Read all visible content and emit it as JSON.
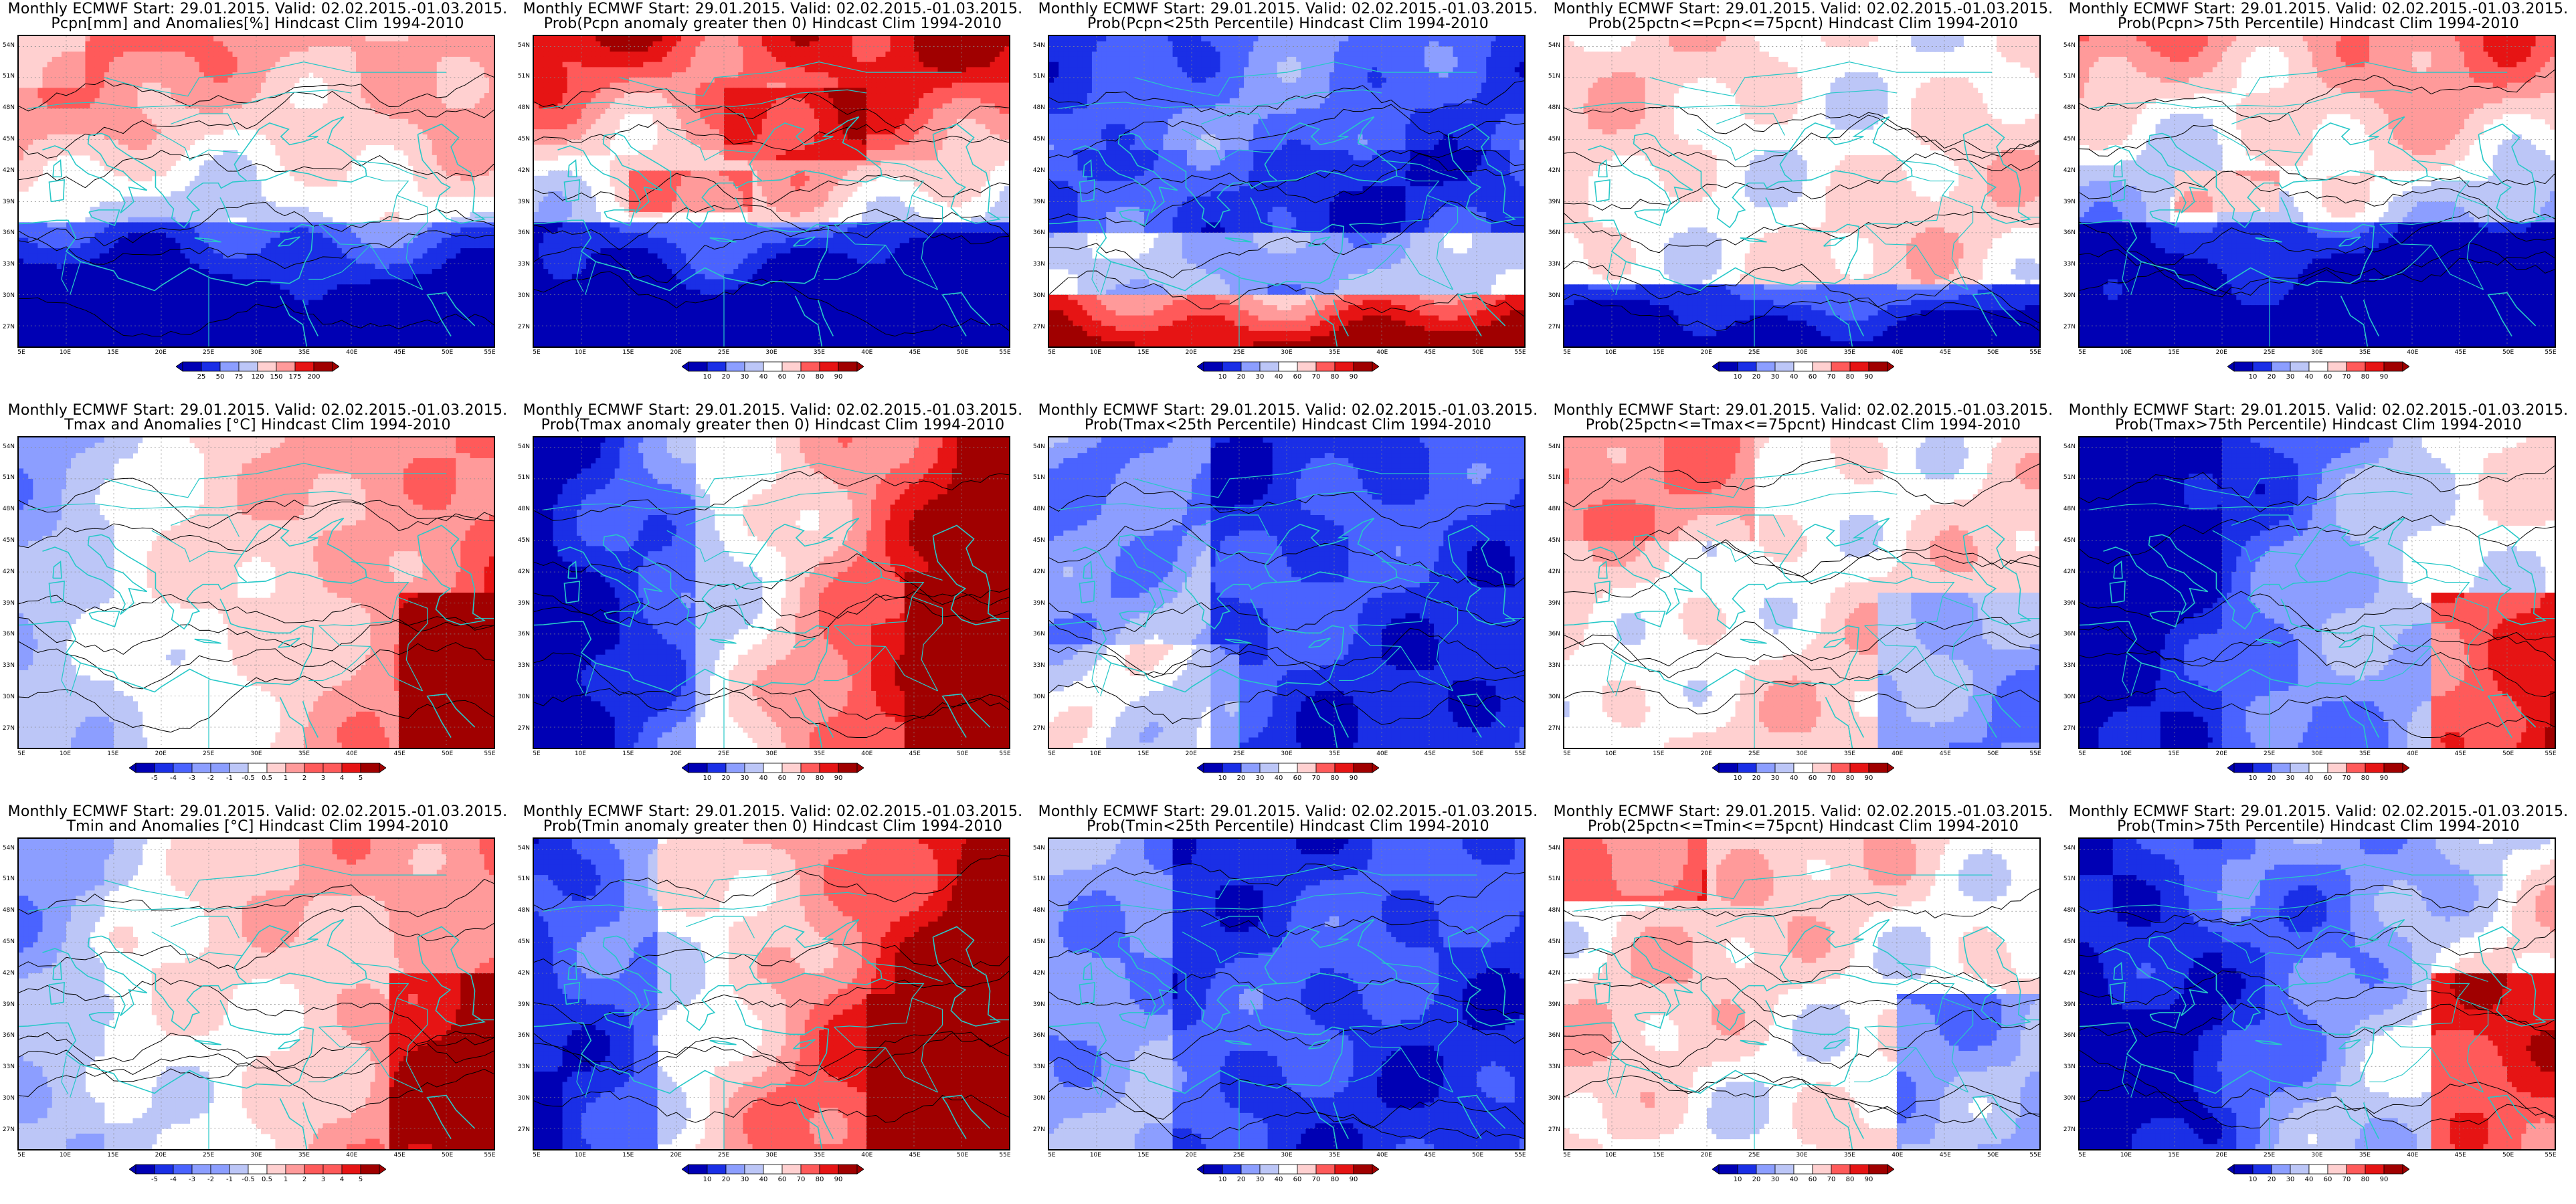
{
  "colors": {
    "coast": "#27c8c8",
    "contour": "#000000",
    "diverging": [
      "#0000b4",
      "#1a2fe6",
      "#4a63ff",
      "#8c9eff",
      "#bcc6f7",
      "#ffffff",
      "#ffd0d0",
      "#ff9a9a",
      "#ff5a5a",
      "#e61414",
      "#a00000"
    ]
  },
  "lat_ticks": [
    "54N",
    "51N",
    "48N",
    "45N",
    "42N",
    "39N",
    "36N",
    "33N",
    "30N",
    "27N"
  ],
  "lon_ticks": [
    "5E",
    "10E",
    "15E",
    "20E",
    "25E",
    "30E",
    "35E",
    "40E",
    "45E",
    "50E",
    "55E"
  ],
  "panels": [
    {
      "title1": "Monthly ECMWF Start: 29.01.2015. Valid: 02.02.2015.-01.03.2015.",
      "title2": "Pcpn[mm] and Anomalies[%] Hindcast Clim 1994-2010",
      "pattern": "wet_north_dry_south",
      "colorbar": [
        "25",
        "50",
        "75",
        "120",
        "150",
        "175",
        "200"
      ]
    },
    {
      "title1": "Monthly ECMWF Start: 29.01.2015. Valid: 02.02.2015.-01.03.2015.",
      "title2": "Prob(Pcpn anomaly greater then 0) Hindcast Clim 1994-2010",
      "pattern": "wet_prob",
      "colorbar": [
        "10",
        "20",
        "30",
        "40",
        "60",
        "70",
        "80",
        "90"
      ]
    },
    {
      "title1": "Monthly ECMWF Start: 29.01.2015. Valid: 02.02.2015.-01.03.2015.",
      "title2": "Prob(Pcpn<25th Percentile) Hindcast Clim 1994-2010",
      "pattern": "low_pcpn",
      "colorbar": [
        "10",
        "20",
        "30",
        "40",
        "60",
        "70",
        "80",
        "90"
      ]
    },
    {
      "title1": "Monthly ECMWF Start: 29.01.2015. Valid: 02.02.2015.-01.03.2015.",
      "title2": "Prob(25pctn<=Pcpn<=75pcnt) Hindcast Clim 1994-2010",
      "pattern": "mid_pcpn",
      "colorbar": [
        "10",
        "20",
        "30",
        "40",
        "60",
        "70",
        "80",
        "90"
      ]
    },
    {
      "title1": "Monthly ECMWF Start: 29.01.2015. Valid: 02.02.2015.-01.03.2015.",
      "title2": "Prob(Pcpn>75th Percentile) Hindcast Clim 1994-2010",
      "pattern": "high_pcpn",
      "colorbar": [
        "10",
        "20",
        "30",
        "40",
        "60",
        "70",
        "80",
        "90"
      ]
    },
    {
      "title1": "Monthly ECMWF Start: 29.01.2015. Valid: 02.02.2015.-01.03.2015.",
      "title2": "Tmax and Anomalies [°C] Hindcast Clim 1994-2010",
      "pattern": "warm_east",
      "colorbar": [
        "-5",
        "-4",
        "-3",
        "-2",
        "-1",
        "-0.5",
        "0.5",
        "1",
        "2",
        "3",
        "4",
        "5"
      ]
    },
    {
      "title1": "Monthly ECMWF Start: 29.01.2015. Valid: 02.02.2015.-01.03.2015.",
      "title2": "Prob(Tmax anomaly greater then 0) Hindcast Clim 1994-2010",
      "pattern": "warm_prob_east",
      "colorbar": [
        "10",
        "20",
        "30",
        "40",
        "60",
        "70",
        "80",
        "90"
      ]
    },
    {
      "title1": "Monthly ECMWF Start: 29.01.2015. Valid: 02.02.2015.-01.03.2015.",
      "title2": "Prob(Tmax<25th Percentile) Hindcast Clim 1994-2010",
      "pattern": "cold_low",
      "colorbar": [
        "10",
        "20",
        "30",
        "40",
        "60",
        "70",
        "80",
        "90"
      ]
    },
    {
      "title1": "Monthly ECMWF Start: 29.01.2015. Valid: 02.02.2015.-01.03.2015.",
      "title2": "Prob(25pctn<=Tmax<=75pcnt) Hindcast Clim 1994-2010",
      "pattern": "mid_temp",
      "colorbar": [
        "10",
        "20",
        "30",
        "40",
        "60",
        "70",
        "80",
        "90"
      ]
    },
    {
      "title1": "Monthly ECMWF Start: 29.01.2015. Valid: 02.02.2015.-01.03.2015.",
      "title2": "Prob(Tmax>75th Percentile) Hindcast Clim 1994-2010",
      "pattern": "high_temp",
      "colorbar": [
        "10",
        "20",
        "30",
        "40",
        "60",
        "70",
        "80",
        "90"
      ]
    },
    {
      "title1": "Monthly ECMWF Start: 29.01.2015. Valid: 02.02.2015.-01.03.2015.",
      "title2": "Tmin and Anomalies [°C] Hindcast Clim 1994-2010",
      "pattern": "warm_east_tmin",
      "colorbar": [
        "-5",
        "-4",
        "-3",
        "-2",
        "-1",
        "-0.5",
        "0.5",
        "1",
        "2",
        "3",
        "4",
        "5"
      ]
    },
    {
      "title1": "Monthly ECMWF Start: 29.01.2015. Valid: 02.02.2015.-01.03.2015.",
      "title2": "Prob(Tmin anomaly greater then 0) Hindcast Clim 1994-2010",
      "pattern": "warm_prob_tmin",
      "colorbar": [
        "10",
        "20",
        "30",
        "40",
        "60",
        "70",
        "80",
        "90"
      ]
    },
    {
      "title1": "Monthly ECMWF Start: 29.01.2015. Valid: 02.02.2015.-01.03.2015.",
      "title2": "Prob(Tmin<25th Percentile) Hindcast Clim 1994-2010",
      "pattern": "cold_low_tmin",
      "colorbar": [
        "10",
        "20",
        "30",
        "40",
        "60",
        "70",
        "80",
        "90"
      ]
    },
    {
      "title1": "Monthly ECMWF Start: 29.01.2015. Valid: 02.02.2015.-01.03.2015.",
      "title2": "Prob(25pctn<=Tmin<=75pcnt) Hindcast Clim 1994-2010",
      "pattern": "mid_temp_tmin",
      "colorbar": [
        "10",
        "20",
        "30",
        "40",
        "60",
        "70",
        "80",
        "90"
      ]
    },
    {
      "title1": "Monthly ECMWF Start: 29.01.2015. Valid: 02.02.2015.-01.03.2015.",
      "title2": "Prob(Tmin>75th Percentile) Hindcast Clim 1994-2010",
      "pattern": "high_temp_tmin",
      "colorbar": [
        "10",
        "20",
        "30",
        "40",
        "60",
        "70",
        "80",
        "90"
      ]
    }
  ]
}
